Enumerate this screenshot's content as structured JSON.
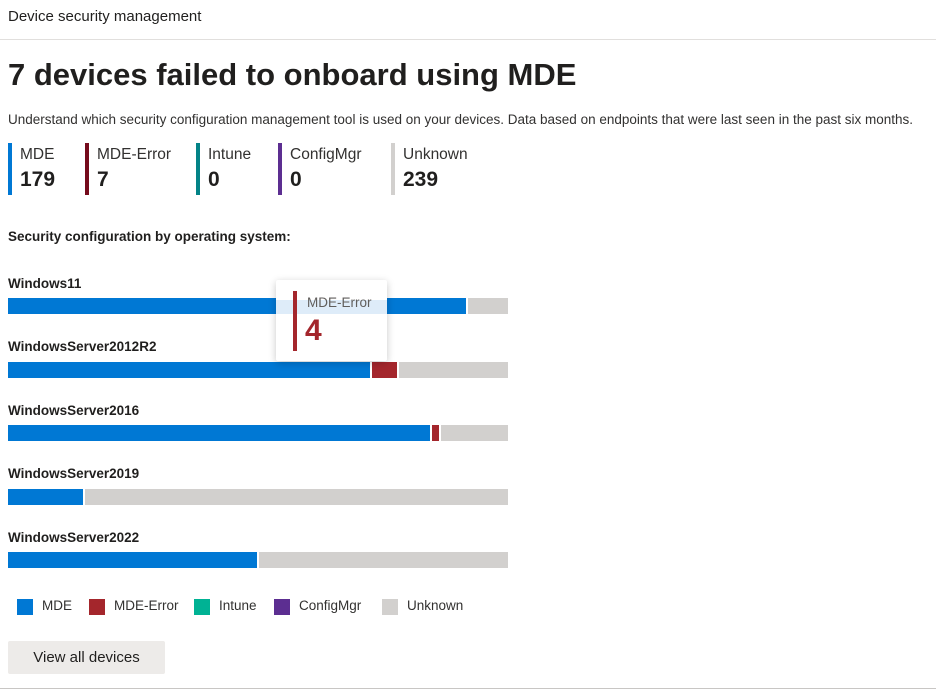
{
  "header": {
    "title": "Device security management"
  },
  "headline": "7 devices failed to onboard using MDE",
  "description": "Understand which security configuration management tool is used on your devices. Data based on endpoints that were last seen in the past six months.",
  "colors": {
    "mde": "#0078d4",
    "mde_error": "#a4262c",
    "metric_mde_error": "#750b1c",
    "intune": "#00b294",
    "metric_intune": "#038387",
    "configmgr": "#5c2e91",
    "unknown": "#d2d0ce"
  },
  "metrics": [
    {
      "label": "MDE",
      "value": "179"
    },
    {
      "label": "MDE-Error",
      "value": "7"
    },
    {
      "label": "Intune",
      "value": "0"
    },
    {
      "label": "ConfigMgr",
      "value": "0"
    },
    {
      "label": "Unknown",
      "value": "239"
    }
  ],
  "section_title": "Security configuration by operating system:",
  "chart_data": {
    "type": "bar",
    "orientation": "horizontal",
    "stacked": "percent",
    "title": "Security configuration by operating system:",
    "categories": [
      "Windows11",
      "WindowsServer2012R2",
      "WindowsServer2016",
      "WindowsServer2019",
      "WindowsServer2022"
    ],
    "series": [
      {
        "name": "MDE",
        "values": [
          92,
          73,
          85,
          15,
          50
        ]
      },
      {
        "name": "MDE-Error",
        "values": [
          0,
          5,
          1.5,
          0,
          0
        ]
      },
      {
        "name": "Intune",
        "values": [
          0,
          0,
          0,
          0,
          0
        ]
      },
      {
        "name": "ConfigMgr",
        "values": [
          0,
          0,
          0,
          0,
          0
        ]
      },
      {
        "name": "Unknown",
        "values": [
          8,
          22,
          13.5,
          85,
          50
        ]
      }
    ],
    "unit": "percent of devices",
    "legend": [
      "MDE",
      "MDE-Error",
      "Intune",
      "ConfigMgr",
      "Unknown"
    ]
  },
  "tooltip": {
    "label": "MDE-Error",
    "value": "4"
  },
  "view_all_label": "View all devices"
}
